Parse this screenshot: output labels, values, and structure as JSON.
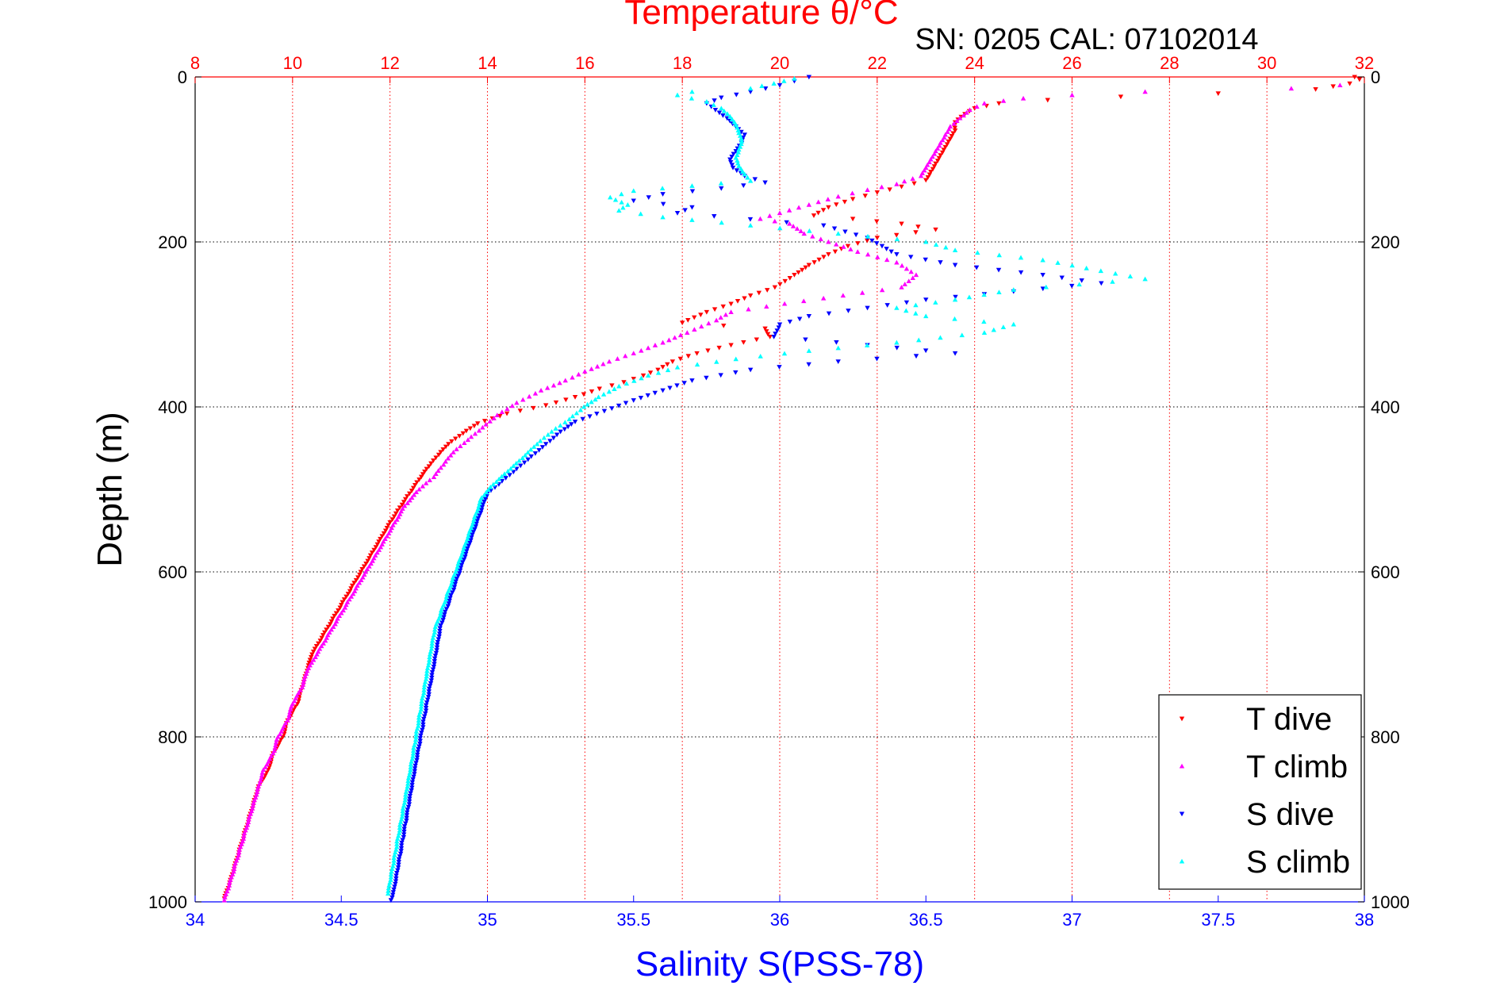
{
  "chart_data": {
    "type": "scatter",
    "title": "Temperature θ/°C",
    "subtitle": "SN: 0205  CAL: 07102014",
    "ylabel": "Depth (m)",
    "xlabel": "Salinity S(PSS-78)",
    "top_xlabel": "Temperature θ/°C",
    "ylim": [
      0,
      1000
    ],
    "y_reversed": true,
    "xlim_salinity": [
      34,
      38
    ],
    "xlim_temperature": [
      8,
      32
    ],
    "y_ticks": [
      "0",
      "200",
      "400",
      "600",
      "800",
      "1000"
    ],
    "x_ticks_salinity": [
      "34",
      "34.5",
      "35",
      "35.5",
      "36",
      "36.5",
      "37",
      "37.5",
      "38"
    ],
    "x_ticks_temperature": [
      "8",
      "10",
      "12",
      "14",
      "16",
      "18",
      "20",
      "22",
      "24",
      "26",
      "28",
      "30",
      "32"
    ],
    "grid": true,
    "legend_position": "bottom-right",
    "colors": {
      "temperature_axis": "#ff0000",
      "salinity_axis": "#0000ff",
      "grid_vertical": "#ff0000",
      "grid_horizontal": "#000000"
    },
    "series": [
      {
        "name": "T dive",
        "marker": "triangle-down",
        "color": "#ff0000",
        "x_axis": "temperature",
        "points": [
          [
            31.8,
            0
          ],
          [
            31.9,
            3
          ],
          [
            31.7,
            8
          ],
          [
            31.0,
            15
          ],
          [
            29.0,
            20
          ],
          [
            27.0,
            24
          ],
          [
            25.5,
            28
          ],
          [
            24.5,
            32
          ],
          [
            24.0,
            38
          ],
          [
            23.8,
            45
          ],
          [
            23.6,
            55
          ],
          [
            23.6,
            65
          ],
          [
            23.5,
            75
          ],
          [
            23.4,
            85
          ],
          [
            23.3,
            95
          ],
          [
            23.2,
            105
          ],
          [
            23.1,
            115
          ],
          [
            23.0,
            125
          ],
          [
            22.5,
            133
          ],
          [
            22.0,
            140
          ],
          [
            21.5,
            148
          ],
          [
            21.0,
            158
          ],
          [
            20.7,
            168
          ],
          [
            21.5,
            172
          ],
          [
            22.5,
            178
          ],
          [
            23.2,
            185
          ],
          [
            22.0,
            195
          ],
          [
            21.4,
            205
          ],
          [
            21.0,
            215
          ],
          [
            20.6,
            228
          ],
          [
            20.3,
            240
          ],
          [
            19.9,
            255
          ],
          [
            19.4,
            265
          ],
          [
            19.0,
            275
          ],
          [
            18.5,
            285
          ],
          [
            18.0,
            298
          ],
          [
            19.7,
            305
          ],
          [
            19.8,
            315
          ],
          [
            19.0,
            325
          ],
          [
            18.3,
            335
          ],
          [
            17.8,
            345
          ],
          [
            17.5,
            355
          ],
          [
            17.2,
            362
          ],
          [
            16.8,
            370
          ],
          [
            16.3,
            378
          ],
          [
            15.8,
            388
          ],
          [
            15.2,
            398
          ],
          [
            14.4,
            408
          ],
          [
            13.8,
            420
          ],
          [
            13.5,
            432
          ],
          [
            13.2,
            445
          ],
          [
            13.0,
            458
          ],
          [
            12.8,
            472
          ],
          [
            12.6,
            488
          ],
          [
            12.4,
            505
          ],
          [
            12.2,
            522
          ],
          [
            12.0,
            540
          ],
          [
            11.8,
            560
          ],
          [
            11.6,
            580
          ],
          [
            11.4,
            600
          ],
          [
            11.2,
            620
          ],
          [
            11.0,
            640
          ],
          [
            10.8,
            660
          ],
          [
            10.6,
            680
          ],
          [
            10.4,
            700
          ],
          [
            10.3,
            720
          ],
          [
            10.2,
            740
          ],
          [
            10.1,
            760
          ],
          [
            9.9,
            780
          ],
          [
            9.8,
            800
          ],
          [
            9.6,
            820
          ],
          [
            9.5,
            840
          ],
          [
            9.3,
            860
          ],
          [
            9.2,
            880
          ],
          [
            9.1,
            900
          ],
          [
            9.0,
            920
          ],
          [
            8.9,
            940
          ],
          [
            8.8,
            960
          ],
          [
            8.7,
            980
          ],
          [
            8.6,
            996
          ]
        ]
      },
      {
        "name": "T climb",
        "marker": "triangle-up",
        "color": "#ff00ff",
        "x_axis": "temperature",
        "points": [
          [
            31.5,
            10
          ],
          [
            30.5,
            14
          ],
          [
            27.5,
            18
          ],
          [
            26.0,
            22
          ],
          [
            25.0,
            26
          ],
          [
            24.2,
            32
          ],
          [
            23.9,
            40
          ],
          [
            23.7,
            50
          ],
          [
            23.5,
            60
          ],
          [
            23.4,
            70
          ],
          [
            23.3,
            80
          ],
          [
            23.2,
            90
          ],
          [
            23.1,
            100
          ],
          [
            23.0,
            110
          ],
          [
            22.9,
            120
          ],
          [
            22.4,
            130
          ],
          [
            21.8,
            137
          ],
          [
            21.2,
            145
          ],
          [
            20.6,
            155
          ],
          [
            20.0,
            165
          ],
          [
            19.6,
            172
          ],
          [
            20.2,
            178
          ],
          [
            20.5,
            190
          ],
          [
            21.0,
            200
          ],
          [
            21.6,
            212
          ],
          [
            22.4,
            225
          ],
          [
            22.8,
            240
          ],
          [
            22.5,
            255
          ],
          [
            21.3,
            265
          ],
          [
            20.1,
            275
          ],
          [
            19.0,
            285
          ],
          [
            18.7,
            295
          ],
          [
            18.1,
            310
          ],
          [
            17.6,
            322
          ],
          [
            17.0,
            335
          ],
          [
            16.5,
            345
          ],
          [
            16.0,
            357
          ],
          [
            15.6,
            368
          ],
          [
            15.1,
            380
          ],
          [
            14.6,
            395
          ],
          [
            14.2,
            410
          ],
          [
            13.9,
            425
          ],
          [
            13.6,
            440
          ],
          [
            13.3,
            455
          ],
          [
            13.1,
            470
          ],
          [
            12.9,
            485
          ],
          [
            12.6,
            500
          ],
          [
            12.3,
            520
          ],
          [
            12.1,
            540
          ],
          [
            11.9,
            560
          ],
          [
            11.7,
            580
          ],
          [
            11.5,
            600
          ],
          [
            11.3,
            620
          ],
          [
            11.1,
            640
          ],
          [
            10.9,
            660
          ],
          [
            10.7,
            680
          ],
          [
            10.5,
            700
          ],
          [
            10.3,
            720
          ],
          [
            10.2,
            740
          ],
          [
            10.0,
            760
          ],
          [
            9.9,
            780
          ],
          [
            9.7,
            800
          ],
          [
            9.6,
            820
          ],
          [
            9.4,
            840
          ],
          [
            9.3,
            860
          ],
          [
            9.2,
            880
          ],
          [
            9.1,
            900
          ],
          [
            9.0,
            920
          ],
          [
            8.9,
            940
          ],
          [
            8.8,
            960
          ],
          [
            8.7,
            980
          ],
          [
            8.6,
            998
          ]
        ]
      },
      {
        "name": "S dive",
        "marker": "triangle-down",
        "color": "#0000ff",
        "x_axis": "salinity",
        "points": [
          [
            36.1,
            0
          ],
          [
            36.05,
            5
          ],
          [
            36.0,
            10
          ],
          [
            35.9,
            18
          ],
          [
            35.8,
            25
          ],
          [
            35.75,
            32
          ],
          [
            35.78,
            40
          ],
          [
            35.82,
            50
          ],
          [
            35.85,
            60
          ],
          [
            35.88,
            70
          ],
          [
            35.87,
            80
          ],
          [
            35.85,
            90
          ],
          [
            35.83,
            100
          ],
          [
            35.84,
            110
          ],
          [
            35.88,
            120
          ],
          [
            35.95,
            128
          ],
          [
            35.8,
            135
          ],
          [
            35.6,
            142
          ],
          [
            35.5,
            150
          ],
          [
            35.7,
            158
          ],
          [
            35.65,
            165
          ],
          [
            36.15,
            180
          ],
          [
            36.3,
            195
          ],
          [
            36.35,
            205
          ],
          [
            36.4,
            215
          ],
          [
            36.6,
            228
          ],
          [
            36.9,
            240
          ],
          [
            37.1,
            250
          ],
          [
            36.8,
            260
          ],
          [
            36.5,
            270
          ],
          [
            36.3,
            280
          ],
          [
            36.1,
            290
          ],
          [
            36.0,
            300
          ],
          [
            35.98,
            315
          ],
          [
            36.3,
            325
          ],
          [
            36.6,
            335
          ],
          [
            36.2,
            345
          ],
          [
            35.9,
            355
          ],
          [
            35.7,
            368
          ],
          [
            35.6,
            380
          ],
          [
            35.5,
            392
          ],
          [
            35.4,
            405
          ],
          [
            35.3,
            418
          ],
          [
            35.25,
            430
          ],
          [
            35.2,
            445
          ],
          [
            35.15,
            460
          ],
          [
            35.1,
            475
          ],
          [
            35.05,
            490
          ],
          [
            35.0,
            505
          ],
          [
            34.98,
            525
          ],
          [
            34.96,
            545
          ],
          [
            34.94,
            565
          ],
          [
            34.92,
            585
          ],
          [
            34.9,
            605
          ],
          [
            34.88,
            625
          ],
          [
            34.86,
            645
          ],
          [
            34.84,
            665
          ],
          [
            34.83,
            685
          ],
          [
            34.82,
            705
          ],
          [
            34.81,
            725
          ],
          [
            34.8,
            745
          ],
          [
            34.79,
            765
          ],
          [
            34.78,
            785
          ],
          [
            34.77,
            805
          ],
          [
            34.76,
            825
          ],
          [
            34.75,
            845
          ],
          [
            34.74,
            865
          ],
          [
            34.73,
            885
          ],
          [
            34.72,
            905
          ],
          [
            34.71,
            925
          ],
          [
            34.7,
            945
          ],
          [
            34.69,
            965
          ],
          [
            34.68,
            985
          ],
          [
            34.67,
            998
          ]
        ]
      },
      {
        "name": "S climb",
        "marker": "triangle-up",
        "color": "#00ffff",
        "x_axis": "salinity",
        "points": [
          [
            36.05,
            2
          ],
          [
            35.98,
            8
          ],
          [
            35.9,
            14
          ],
          [
            35.7,
            18
          ],
          [
            35.65,
            22
          ],
          [
            35.75,
            30
          ],
          [
            35.8,
            38
          ],
          [
            35.83,
            48
          ],
          [
            35.85,
            58
          ],
          [
            35.86,
            68
          ],
          [
            35.87,
            78
          ],
          [
            35.86,
            88
          ],
          [
            35.85,
            98
          ],
          [
            35.86,
            108
          ],
          [
            35.88,
            118
          ],
          [
            35.9,
            126
          ],
          [
            35.7,
            132
          ],
          [
            35.5,
            138
          ],
          [
            35.42,
            146
          ],
          [
            35.48,
            155
          ],
          [
            35.45,
            162
          ],
          [
            35.6,
            170
          ],
          [
            35.9,
            180
          ],
          [
            36.2,
            190
          ],
          [
            36.5,
            200
          ],
          [
            36.6,
            210
          ],
          [
            36.9,
            222
          ],
          [
            37.25,
            245
          ],
          [
            36.8,
            258
          ],
          [
            36.6,
            270
          ],
          [
            36.4,
            280
          ],
          [
            36.5,
            290
          ],
          [
            36.8,
            300
          ],
          [
            36.7,
            310
          ],
          [
            36.4,
            322
          ],
          [
            36.1,
            332
          ],
          [
            35.85,
            342
          ],
          [
            35.65,
            352
          ],
          [
            35.55,
            362
          ],
          [
            35.45,
            375
          ],
          [
            35.38,
            388
          ],
          [
            35.33,
            400
          ],
          [
            35.28,
            415
          ],
          [
            35.22,
            430
          ],
          [
            35.17,
            445
          ],
          [
            35.12,
            462
          ],
          [
            35.07,
            478
          ],
          [
            35.02,
            494
          ],
          [
            34.98,
            510
          ],
          [
            34.96,
            530
          ],
          [
            34.94,
            550
          ],
          [
            34.92,
            570
          ],
          [
            34.9,
            590
          ],
          [
            34.88,
            610
          ],
          [
            34.86,
            630
          ],
          [
            34.84,
            650
          ],
          [
            34.82,
            670
          ],
          [
            34.81,
            690
          ],
          [
            34.8,
            710
          ],
          [
            34.79,
            730
          ],
          [
            34.78,
            750
          ],
          [
            34.77,
            770
          ],
          [
            34.76,
            790
          ],
          [
            34.75,
            810
          ],
          [
            34.74,
            830
          ],
          [
            34.73,
            850
          ],
          [
            34.72,
            870
          ],
          [
            34.71,
            890
          ],
          [
            34.7,
            910
          ],
          [
            34.69,
            930
          ],
          [
            34.68,
            950
          ],
          [
            34.67,
            970
          ],
          [
            34.66,
            990
          ]
        ]
      }
    ]
  }
}
